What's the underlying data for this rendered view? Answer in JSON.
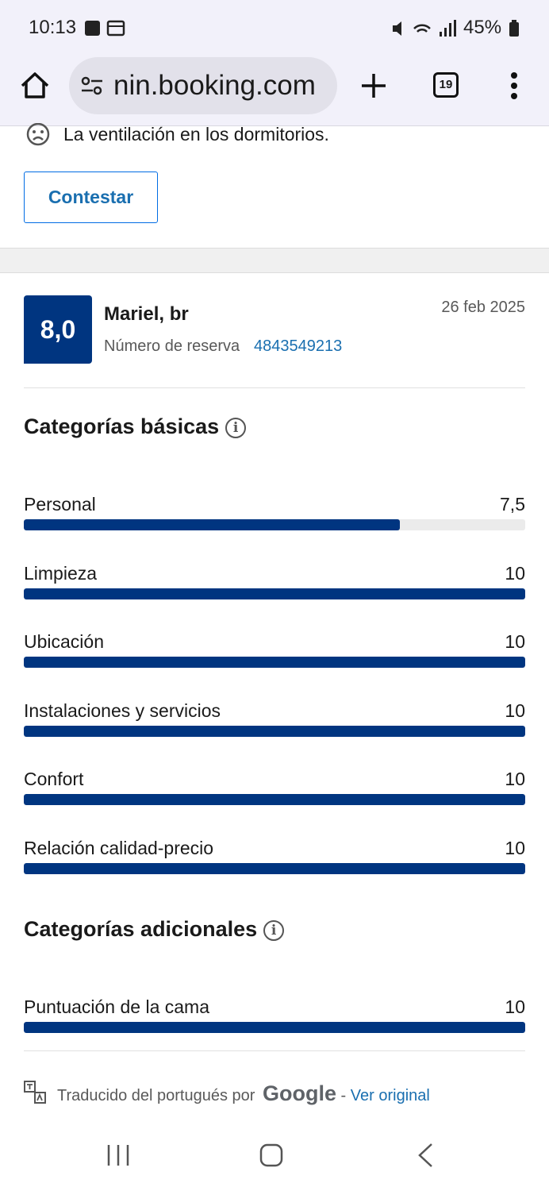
{
  "status_bar": {
    "time": "10:13",
    "battery": "45%"
  },
  "browser": {
    "url": "nin.booking.com",
    "tab_count": "19"
  },
  "previous_review": {
    "negative_text": "La ventilación en los dormitorios.",
    "reply_button": "Contestar"
  },
  "review": {
    "score": "8,0",
    "guest": "Mariel, br",
    "reservation_label": "Número de reserva",
    "reservation_number": "4843549213",
    "date": "26 feb 2025"
  },
  "basic_categories": {
    "title": "Categorías básicas",
    "xlim": [
      0,
      10
    ],
    "items": [
      {
        "label": "Personal",
        "value": 7.5,
        "value_label": "7,5"
      },
      {
        "label": "Limpieza",
        "value": 10
      },
      {
        "label": "Ubicación",
        "value": 10
      },
      {
        "label": "Instalaciones y servicios",
        "value": 10
      },
      {
        "label": "Confort",
        "value": 10
      },
      {
        "label": "Relación calidad-precio",
        "value": 10
      }
    ]
  },
  "additional_categories": {
    "title": "Categorías adicionales",
    "xlim": [
      0,
      10
    ],
    "items": [
      {
        "label": "Puntuación de la cama",
        "value": 10
      }
    ]
  },
  "translation": {
    "text": "Traducido del portugués por",
    "provider": "Google",
    "separator": "-",
    "link": "Ver original"
  }
}
